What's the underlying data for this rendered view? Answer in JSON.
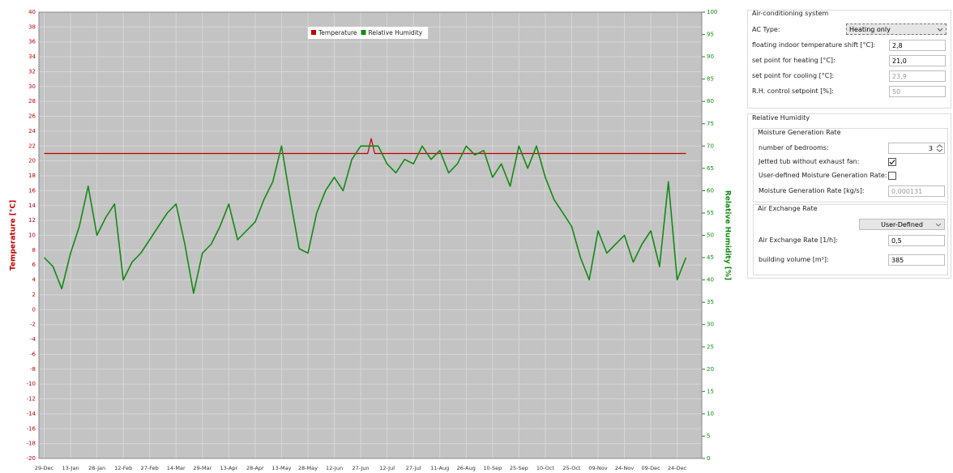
{
  "chart_data": {
    "type": "line",
    "ylabel": "Temperature [°C]",
    "y2label": "Relative Humidity [%]",
    "xlim": [
      -3,
      374
    ],
    "xticks": [
      {
        "value": 0,
        "label": "29-Dec"
      },
      {
        "value": 15,
        "label": "13-Jan"
      },
      {
        "value": 30,
        "label": "28-Jan"
      },
      {
        "value": 45,
        "label": "12-Feb"
      },
      {
        "value": 60,
        "label": "27-Feb"
      },
      {
        "value": 75,
        "label": "14-Mar"
      },
      {
        "value": 90,
        "label": "29-Mar"
      },
      {
        "value": 105,
        "label": "13-Apr"
      },
      {
        "value": 120,
        "label": "28-Apr"
      },
      {
        "value": 135,
        "label": "13-May"
      },
      {
        "value": 150,
        "label": "28-May"
      },
      {
        "value": 165,
        "label": "12-Jun"
      },
      {
        "value": 180,
        "label": "27-Jun"
      },
      {
        "value": 195,
        "label": "12-Jul"
      },
      {
        "value": 210,
        "label": "27-Jul"
      },
      {
        "value": 225,
        "label": "11-Aug"
      },
      {
        "value": 240,
        "label": "26-Aug"
      },
      {
        "value": 255,
        "label": "10-Sep"
      },
      {
        "value": 270,
        "label": "25-Sep"
      },
      {
        "value": 285,
        "label": "10-Oct"
      },
      {
        "value": 300,
        "label": "25-Oct"
      },
      {
        "value": 315,
        "label": "09-Nov"
      },
      {
        "value": 330,
        "label": "24-Nov"
      },
      {
        "value": 345,
        "label": "09-Dec"
      },
      {
        "value": 360,
        "label": "24-Dec"
      }
    ],
    "ylim": [
      -20,
      40
    ],
    "yticks": [
      -20,
      -18,
      -16,
      -14,
      -12,
      -10,
      -8,
      -6,
      -4,
      -2,
      0,
      2,
      4,
      6,
      8,
      10,
      12,
      14,
      16,
      18,
      20,
      22,
      24,
      26,
      28,
      30,
      32,
      34,
      36,
      38,
      40
    ],
    "y2lim": [
      0,
      100
    ],
    "y2ticks": [
      0,
      5,
      10,
      15,
      20,
      25,
      30,
      35,
      40,
      45,
      50,
      55,
      60,
      65,
      70,
      75,
      80,
      85,
      90,
      95,
      100
    ],
    "grid": true,
    "legend": "top",
    "series": [
      {
        "name": "Temperature",
        "color": "#c00000",
        "x": [
          0,
          184,
          186,
          188,
          365
        ],
        "values": [
          21,
          21,
          23,
          21,
          21
        ]
      },
      {
        "name": "Relative Humidity",
        "color": "#138a13",
        "axis": "y2",
        "x": [
          0,
          5,
          10,
          15,
          20,
          25,
          30,
          35,
          40,
          45,
          50,
          55,
          60,
          65,
          70,
          75,
          80,
          85,
          90,
          95,
          100,
          105,
          110,
          115,
          120,
          125,
          130,
          135,
          140,
          145,
          150,
          155,
          160,
          165,
          170,
          175,
          180,
          185,
          190,
          195,
          200,
          205,
          210,
          215,
          220,
          225,
          230,
          235,
          240,
          245,
          250,
          255,
          260,
          265,
          270,
          275,
          280,
          285,
          290,
          295,
          300,
          305,
          310,
          315,
          320,
          325,
          330,
          335,
          340,
          345,
          350,
          355,
          360,
          365
        ],
        "values": [
          45,
          43,
          38,
          46,
          52,
          61,
          50,
          54,
          57,
          40,
          44,
          46,
          49,
          52,
          55,
          57,
          48,
          37,
          46,
          48,
          52,
          57,
          49,
          51,
          53,
          58,
          62,
          70,
          58,
          47,
          46,
          55,
          60,
          63,
          60,
          67,
          70,
          70,
          70,
          66,
          64,
          67,
          66,
          70,
          67,
          69,
          64,
          66,
          70,
          68,
          69,
          63,
          66,
          61,
          70,
          65,
          70,
          63,
          58,
          55,
          52,
          45,
          40,
          51,
          46,
          48,
          50,
          44,
          48,
          51,
          43,
          62,
          40,
          45
        ]
      }
    ]
  },
  "ac_system": {
    "title": "Air-conditioning system",
    "ac_type": {
      "label": "AC Type:",
      "value": "Heating only"
    },
    "fields": [
      {
        "label": "floating indoor temperature shift [°C]:",
        "value": "2,8",
        "enabled": true
      },
      {
        "label": "set point for heating [°C]:",
        "value": "21,0",
        "enabled": true
      },
      {
        "label": "set point for cooling [°C]:",
        "value": "23,9",
        "enabled": false
      },
      {
        "label": "R.H. control setpoint [%]:",
        "value": "50",
        "enabled": false
      }
    ]
  },
  "relative_humidity": {
    "title": "Relative Humidity",
    "moisture": {
      "title": "Moisture Generation Rate",
      "bedrooms": {
        "label": "number of bedrooms:",
        "value": 3
      },
      "jetted_tub": {
        "label": "Jetted tub without exhaust fan:",
        "checked": true
      },
      "user_defined": {
        "label": "User-defined Moisture Generation Rate:",
        "checked": false
      },
      "rate": {
        "label": "Moisture Generation Rate [kg/s]:",
        "value": "0,000131",
        "enabled": false
      }
    },
    "air_exchange": {
      "title": "Air Exchange Rate",
      "mode": "User-Defined",
      "rate": {
        "label": "Air Exchange Rate [1/h]:",
        "value": "0,5",
        "enabled": true
      },
      "volume": {
        "label": "building volume [m³]:",
        "value": "385",
        "enabled": true
      }
    }
  }
}
